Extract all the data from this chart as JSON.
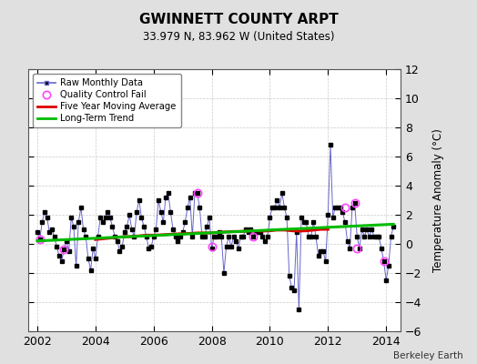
{
  "title": "GWINNETT COUNTY ARPT",
  "subtitle": "33.979 N, 83.962 W (United States)",
  "ylabel": "Temperature Anomaly (°C)",
  "attribution": "Berkeley Earth",
  "ylim": [
    -6,
    12
  ],
  "yticks": [
    -6,
    -4,
    -2,
    0,
    2,
    4,
    6,
    8,
    10,
    12
  ],
  "xlim": [
    2001.7,
    2014.5
  ],
  "xticks": [
    2002,
    2004,
    2006,
    2008,
    2010,
    2012,
    2014
  ],
  "background_color": "#e0e0e0",
  "plot_bg_color": "#ffffff",
  "raw_monthly": {
    "x": [
      2002.0,
      2002.083,
      2002.167,
      2002.25,
      2002.333,
      2002.417,
      2002.5,
      2002.583,
      2002.667,
      2002.75,
      2002.833,
      2002.917,
      2003.0,
      2003.083,
      2003.167,
      2003.25,
      2003.333,
      2003.417,
      2003.5,
      2003.583,
      2003.667,
      2003.75,
      2003.833,
      2003.917,
      2004.0,
      2004.083,
      2004.167,
      2004.25,
      2004.333,
      2004.417,
      2004.5,
      2004.583,
      2004.667,
      2004.75,
      2004.833,
      2004.917,
      2005.0,
      2005.083,
      2005.167,
      2005.25,
      2005.333,
      2005.417,
      2005.5,
      2005.583,
      2005.667,
      2005.75,
      2005.833,
      2005.917,
      2006.0,
      2006.083,
      2006.167,
      2006.25,
      2006.333,
      2006.417,
      2006.5,
      2006.583,
      2006.667,
      2006.75,
      2006.833,
      2006.917,
      2007.0,
      2007.083,
      2007.167,
      2007.25,
      2007.333,
      2007.417,
      2007.5,
      2007.583,
      2007.667,
      2007.75,
      2007.833,
      2007.917,
      2008.0,
      2008.083,
      2008.167,
      2008.25,
      2008.333,
      2008.417,
      2008.5,
      2008.583,
      2008.667,
      2008.75,
      2008.833,
      2008.917,
      2009.0,
      2009.083,
      2009.167,
      2009.25,
      2009.333,
      2009.417,
      2009.5,
      2009.583,
      2009.667,
      2009.75,
      2009.833,
      2009.917,
      2010.0,
      2010.083,
      2010.167,
      2010.25,
      2010.333,
      2010.417,
      2010.5,
      2010.583,
      2010.667,
      2010.75,
      2010.833,
      2010.917,
      2011.0,
      2011.083,
      2011.167,
      2011.25,
      2011.333,
      2011.417,
      2011.5,
      2011.583,
      2011.667,
      2011.75,
      2011.833,
      2011.917,
      2012.0,
      2012.083,
      2012.167,
      2012.25,
      2012.333,
      2012.417,
      2012.5,
      2012.583,
      2012.667,
      2012.75,
      2012.833,
      2012.917,
      2013.0,
      2013.083,
      2013.167,
      2013.25,
      2013.333,
      2013.417,
      2013.5,
      2013.583,
      2013.667,
      2013.75,
      2013.833,
      2013.917,
      2014.0,
      2014.083,
      2014.167,
      2014.25
    ],
    "y": [
      0.8,
      0.3,
      1.5,
      2.2,
      1.8,
      0.8,
      1.0,
      0.5,
      -0.2,
      -0.8,
      -1.2,
      -0.4,
      0.2,
      -0.5,
      1.8,
      1.2,
      -1.5,
      1.5,
      2.5,
      1.0,
      0.5,
      -1.0,
      -1.8,
      -0.3,
      -1.0,
      0.5,
      1.8,
      1.5,
      1.8,
      2.2,
      1.8,
      1.2,
      0.5,
      0.2,
      -0.5,
      -0.2,
      0.8,
      1.2,
      2.0,
      1.0,
      0.5,
      2.2,
      3.0,
      1.8,
      1.2,
      0.5,
      -0.3,
      -0.2,
      0.5,
      1.0,
      3.0,
      2.2,
      1.5,
      3.2,
      3.5,
      2.2,
      1.0,
      0.5,
      0.2,
      0.5,
      0.8,
      1.5,
      2.5,
      3.2,
      0.5,
      3.5,
      3.5,
      2.5,
      0.5,
      0.5,
      1.2,
      1.8,
      -0.3,
      0.5,
      0.5,
      0.8,
      0.5,
      -2.0,
      -0.2,
      0.5,
      -0.2,
      0.5,
      0.2,
      -0.3,
      0.5,
      0.5,
      1.0,
      0.8,
      1.0,
      0.5,
      0.8,
      0.8,
      0.8,
      0.5,
      0.2,
      0.5,
      1.8,
      2.5,
      2.5,
      3.0,
      2.5,
      3.5,
      2.5,
      1.8,
      -2.2,
      -3.0,
      -3.2,
      0.8,
      -4.5,
      1.8,
      1.5,
      1.5,
      0.5,
      0.5,
      1.5,
      0.5,
      -0.8,
      -0.5,
      -0.5,
      -1.2,
      2.0,
      6.8,
      1.8,
      2.5,
      2.5,
      2.5,
      2.2,
      1.5,
      0.2,
      -0.3,
      2.5,
      2.8,
      0.5,
      -0.3,
      1.0,
      0.5,
      1.0,
      0.5,
      1.0,
      0.5,
      0.5,
      0.5,
      -0.3,
      -1.2,
      -2.5,
      -1.5,
      0.5,
      1.2
    ]
  },
  "qc_fail": {
    "x": [
      2002.083,
      2002.917,
      2007.5,
      2008.0,
      2009.417,
      2012.583,
      2012.917,
      2013.0,
      2013.917
    ],
    "y": [
      0.3,
      -0.4,
      3.5,
      -0.2,
      0.5,
      2.5,
      2.8,
      -0.3,
      -1.2
    ]
  },
  "five_year_ma": {
    "x": [
      2004.0,
      2004.25,
      2004.5,
      2004.75,
      2005.0,
      2005.25,
      2005.5,
      2005.75,
      2006.0,
      2006.25,
      2006.5,
      2006.75,
      2007.0,
      2007.25,
      2007.5,
      2007.75,
      2008.0,
      2008.25,
      2008.5,
      2008.75,
      2009.0,
      2009.25,
      2009.5,
      2009.75,
      2010.0,
      2010.25,
      2010.5,
      2010.75,
      2011.0,
      2011.25,
      2011.5,
      2011.75,
      2012.0
    ],
    "y": [
      0.3,
      0.35,
      0.4,
      0.45,
      0.5,
      0.5,
      0.55,
      0.6,
      0.6,
      0.62,
      0.65,
      0.68,
      0.7,
      0.72,
      0.75,
      0.75,
      0.75,
      0.8,
      0.82,
      0.85,
      0.85,
      0.88,
      0.9,
      0.88,
      0.9,
      0.95,
      0.95,
      0.9,
      0.88,
      0.9,
      0.95,
      1.0,
      1.0
    ]
  },
  "long_term_trend": {
    "x": [
      2002.0,
      2014.25
    ],
    "y": [
      0.2,
      1.35
    ]
  },
  "colors": {
    "raw_line": "#6666cc",
    "raw_marker": "#000000",
    "qc_fail": "#ff44ff",
    "five_year_ma": "#dd0000",
    "long_term_trend": "#00bb00"
  }
}
